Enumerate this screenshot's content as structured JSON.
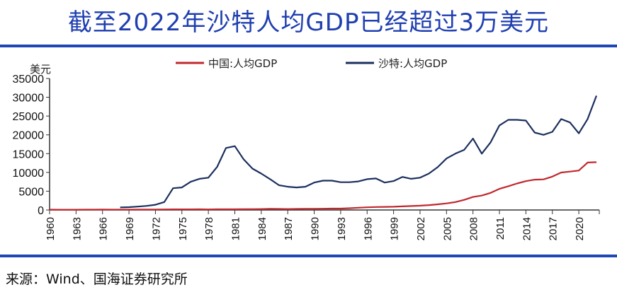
{
  "title": "截至2022年沙特人均GDP已经超过3万美元",
  "source": "来源：Wind、国海证券研究所",
  "chart_data": {
    "type": "line",
    "ylabel": "美元",
    "ylim": [
      0,
      35000
    ],
    "yticks": [
      0,
      5000,
      10000,
      15000,
      20000,
      25000,
      30000,
      35000
    ],
    "xlim": [
      1960,
      2022
    ],
    "xticks": [
      1960,
      1963,
      1966,
      1969,
      1972,
      1975,
      1978,
      1981,
      1984,
      1987,
      1990,
      1993,
      1996,
      1999,
      2002,
      2005,
      2008,
      2011,
      2014,
      2017,
      2020
    ],
    "legend_position": "top",
    "series": [
      {
        "name": "中国:人均GDP",
        "color": "#c0282d",
        "x_start": 1960,
        "values": [
          90,
          76,
          70,
          74,
          85,
          98,
          104,
          97,
          91,
          90,
          113,
          119,
          132,
          157,
          160,
          178,
          165,
          185,
          156,
          184,
          195,
          197,
          203,
          225,
          251,
          294,
          282,
          252,
          284,
          311,
          318,
          334,
          367,
          377,
          473,
          610,
          709,
          782,
          829,
          873,
          959,
          1053,
          1149,
          1289,
          1509,
          1753,
          2099,
          2694,
          3468,
          3832,
          4550,
          5618,
          6317,
          7051,
          7679,
          8067,
          8148,
          8879,
          9977,
          10217,
          10500,
          12618,
          12720
        ]
      },
      {
        "name": "沙特:人均GDP",
        "color": "#1b2f5e",
        "x_start": 1968,
        "values": [
          700,
          750,
          900,
          1100,
          1400,
          2100,
          5800,
          6000,
          7500,
          8300,
          8600,
          11500,
          16500,
          17000,
          13500,
          11000,
          9700,
          8200,
          6600,
          6200,
          6000,
          6200,
          7300,
          7800,
          7800,
          7400,
          7400,
          7600,
          8200,
          8400,
          7300,
          7700,
          8800,
          8300,
          8600,
          9700,
          11400,
          13700,
          15000,
          16000,
          19000,
          15000,
          18000,
          22500,
          24000,
          24000,
          23800,
          20600,
          20000,
          20800,
          24200,
          23300,
          20400,
          24200,
          30400
        ]
      }
    ]
  }
}
